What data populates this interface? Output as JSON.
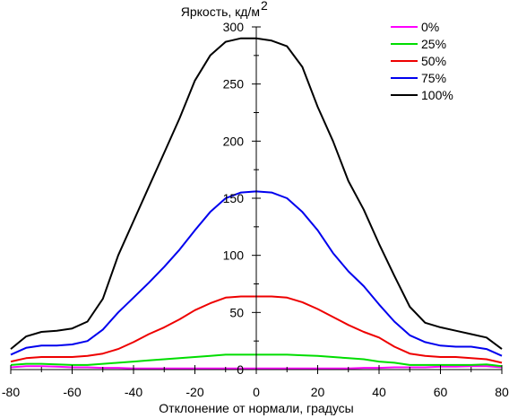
{
  "chart_data": {
    "type": "line",
    "title": "",
    "ylabel": "Яркость, кд/м",
    "ylabel_sup": "2",
    "xlabel": "Отклонение от нормали, градусы",
    "xlim": [
      -80,
      80
    ],
    "ylim": [
      0,
      300
    ],
    "x_ticks": [
      "-80",
      "-60",
      "-40",
      "-20",
      "0",
      "20",
      "40",
      "60",
      "80"
    ],
    "y_ticks": [
      "0",
      "50",
      "100",
      "150",
      "200",
      "250",
      "300"
    ],
    "grid": false,
    "legend_position": "top-right",
    "x": [
      -80,
      -75,
      -70,
      -65,
      -60,
      -55,
      -50,
      -45,
      -40,
      -35,
      -30,
      -25,
      -20,
      -15,
      -10,
      -5,
      0,
      5,
      10,
      15,
      20,
      25,
      30,
      35,
      40,
      45,
      50,
      55,
      60,
      65,
      70,
      75,
      80
    ],
    "series": [
      {
        "name": "0%",
        "color": "#ff00ff",
        "values": [
          2,
          3,
          3,
          2.5,
          2,
          2,
          1.5,
          1.5,
          1,
          1,
          1,
          1,
          1,
          1,
          1,
          1,
          1,
          1,
          1,
          1,
          1,
          1,
          1,
          1.5,
          1.5,
          2,
          2,
          2,
          2.5,
          2.5,
          3,
          3,
          2
        ]
      },
      {
        "name": "25%",
        "color": "#00dd00",
        "values": [
          4,
          5,
          5,
          4.5,
          4,
          4,
          5,
          6,
          7,
          8,
          9,
          10,
          11,
          12,
          13,
          13,
          13,
          13,
          13,
          12.5,
          12,
          11,
          10,
          9,
          7,
          6,
          4,
          4,
          4,
          4,
          4,
          4.5,
          3
        ]
      },
      {
        "name": "50%",
        "color": "#ee0000",
        "values": [
          7,
          10,
          11,
          11,
          11,
          12,
          14,
          18,
          24,
          31,
          37,
          44,
          52,
          58,
          63,
          64,
          64,
          64,
          63,
          59,
          53,
          46,
          39,
          33,
          28,
          20,
          14,
          12,
          11,
          11,
          10,
          9,
          6
        ]
      },
      {
        "name": "75%",
        "color": "#0000ee",
        "values": [
          13,
          19,
          21,
          21,
          22,
          25,
          35,
          50,
          63,
          76,
          90,
          105,
          122,
          138,
          150,
          155,
          156,
          155,
          150,
          138,
          122,
          102,
          86,
          73,
          57,
          42,
          30,
          24,
          21,
          20,
          20,
          18,
          12
        ]
      },
      {
        "name": "100%",
        "color": "#000000",
        "values": [
          18,
          29,
          33,
          34,
          36,
          42,
          62,
          100,
          130,
          160,
          190,
          220,
          253,
          275,
          287,
          290,
          290,
          288,
          283,
          265,
          230,
          200,
          165,
          140,
          110,
          82,
          55,
          41,
          37,
          34,
          31,
          28,
          18
        ]
      }
    ]
  }
}
